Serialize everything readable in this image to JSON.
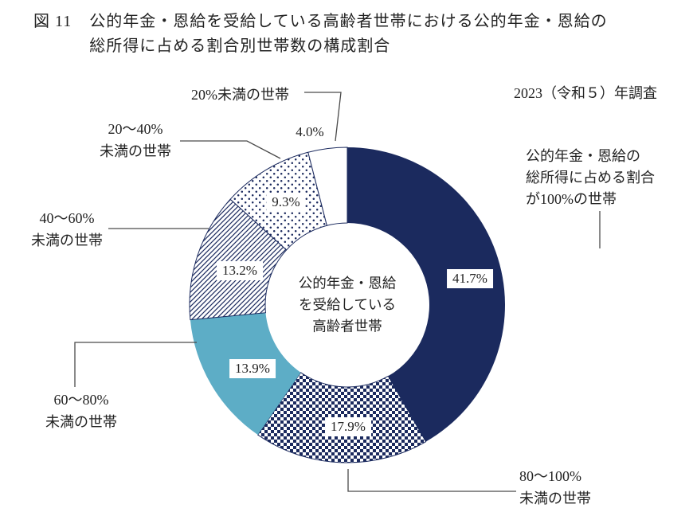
{
  "figure": {
    "label": "図 11",
    "title_line1": "公的年金・恩給を受給している高齢者世帯における公的年金・恩給の",
    "title_line2": "総所得に占める割合別世帯数の構成割合",
    "survey_note": "2023（令和５）年調査"
  },
  "chart_data": {
    "type": "pie",
    "style": "donut",
    "start_angle": 0,
    "direction": "clockwise",
    "center_label_lines": [
      "公的年金・恩給",
      "を受給している",
      "高齢者世帯"
    ],
    "segments": [
      {
        "name": "share-100",
        "label": "公的年金・恩給の総所得に占める割合が100%の世帯",
        "value": 41.7,
        "value_label": "41.7%",
        "fill": "navy"
      },
      {
        "name": "share-80-100",
        "label": "80～100%未満の世帯",
        "value": 17.9,
        "value_label": "17.9%",
        "fill": "checker"
      },
      {
        "name": "share-60-80",
        "label": "60～80%未満の世帯",
        "value": 13.9,
        "value_label": "13.9%",
        "fill": "lightblue"
      },
      {
        "name": "share-40-60",
        "label": "40～60%未満の世帯",
        "value": 13.2,
        "value_label": "13.2%",
        "fill": "stripe"
      },
      {
        "name": "share-20-40",
        "label": "20～40%未満の世帯",
        "value": 9.3,
        "value_label": "9.3%",
        "fill": "dots"
      },
      {
        "name": "share-under-20",
        "label": "20%未満の世帯",
        "value": 4.0,
        "value_label": "4.0%",
        "fill": "white"
      }
    ],
    "colors": {
      "navy": "#1b2a5e",
      "lightblue": "#5dadc6",
      "white": "#ffffff",
      "leader_line": "#4a4a4a",
      "text": "#222222"
    }
  },
  "callouts": {
    "under20": {
      "lines": [
        "20%未満の世帯"
      ]
    },
    "r20_40": {
      "lines": [
        "20～40%",
        "未満の世帯"
      ]
    },
    "r40_60": {
      "lines": [
        "40～60%",
        "未満の世帯"
      ]
    },
    "r60_80": {
      "lines": [
        "60～80%",
        "未満の世帯"
      ]
    },
    "r80_100": {
      "lines": [
        "80～100%",
        "未満の世帯"
      ]
    },
    "r100": {
      "lines": [
        "公的年金・恩給の",
        "総所得に占める割合",
        "が100%の世帯"
      ]
    }
  }
}
